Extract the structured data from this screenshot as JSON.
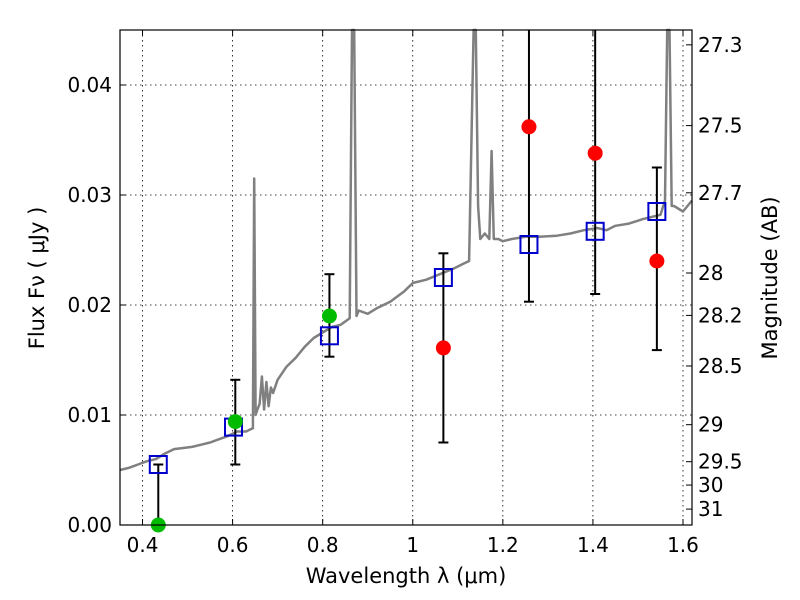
{
  "chart_data": {
    "type": "scatter",
    "title": "",
    "xlabel": "Wavelength  λ (μm)",
    "ylabel": "Flux  Fν  ( μJy )",
    "y2label": "Magnitude (AB)",
    "xlim": [
      0.35,
      1.62
    ],
    "ylim": [
      0.0,
      0.045
    ],
    "grid": true,
    "legend": "none",
    "x_ticks": [
      0.4,
      0.6,
      0.8,
      1.0,
      1.2,
      1.4,
      1.6
    ],
    "x_tick_labels": [
      "0.4",
      "0.6",
      "0.8",
      "1",
      "1.2",
      "1.4",
      "1.6"
    ],
    "y_ticks": [
      0.0,
      0.01,
      0.02,
      0.03,
      0.04
    ],
    "y_tick_labels": [
      "0.00",
      "0.01",
      "0.02",
      "0.03",
      "0.04"
    ],
    "mag_ticks": [
      27.3,
      27.5,
      27.7,
      28,
      28.2,
      28.5,
      29,
      29.5,
      30,
      31
    ],
    "mag_tick_labels": [
      "27.3",
      "27.5",
      "27.7",
      "28",
      "28.2",
      "28.5",
      "29",
      "29.5",
      "30",
      "31"
    ],
    "colors": {
      "model": "#808080",
      "model_photometry": "#0000cc",
      "detections": "#00bb00",
      "measurements": "#ff0000",
      "errorbars": "#000000"
    },
    "series": [
      {
        "kind": "line",
        "color": "#808080",
        "x": [
          0.35,
          0.37,
          0.39,
          0.41,
          0.43,
          0.45,
          0.47,
          0.49,
          0.51,
          0.53,
          0.55,
          0.57,
          0.59,
          0.61,
          0.63,
          0.64,
          0.645,
          0.648,
          0.651,
          0.655,
          0.66,
          0.665,
          0.67,
          0.675,
          0.68,
          0.685,
          0.69,
          0.7,
          0.72,
          0.74,
          0.76,
          0.78,
          0.8,
          0.82,
          0.84,
          0.86,
          0.865,
          0.87,
          0.875,
          0.88,
          0.9,
          0.92,
          0.95,
          0.98,
          1.0,
          1.03,
          1.06,
          1.09,
          1.11,
          1.125,
          1.135,
          1.14,
          1.145,
          1.15,
          1.16,
          1.17,
          1.175,
          1.18,
          1.19,
          1.2,
          1.22,
          1.25,
          1.28,
          1.32,
          1.35,
          1.38,
          1.41,
          1.43,
          1.45,
          1.48,
          1.51,
          1.53,
          1.55,
          1.56,
          1.565,
          1.57,
          1.575,
          1.58,
          1.6,
          1.62
        ],
        "y": [
          0.005,
          0.0052,
          0.0055,
          0.0058,
          0.006,
          0.0065,
          0.0069,
          0.007,
          0.0071,
          0.0073,
          0.0075,
          0.0078,
          0.0081,
          0.0085,
          0.0085,
          0.0087,
          0.0088,
          0.0315,
          0.01,
          0.0105,
          0.011,
          0.0135,
          0.0105,
          0.013,
          0.0108,
          0.0125,
          0.012,
          0.0132,
          0.0144,
          0.0152,
          0.0162,
          0.017,
          0.0175,
          0.018,
          0.0182,
          0.0188,
          0.045,
          0.045,
          0.019,
          0.0195,
          0.0192,
          0.0197,
          0.0203,
          0.0212,
          0.022,
          0.0223,
          0.0228,
          0.0233,
          0.0237,
          0.024,
          0.045,
          0.045,
          0.029,
          0.026,
          0.0265,
          0.026,
          0.034,
          0.026,
          0.026,
          0.0258,
          0.026,
          0.0262,
          0.0262,
          0.0263,
          0.0265,
          0.0268,
          0.027,
          0.0268,
          0.0272,
          0.0274,
          0.0278,
          0.028,
          0.0282,
          0.0295,
          0.045,
          0.045,
          0.029,
          0.029,
          0.0285,
          0.0295
        ]
      },
      {
        "kind": "markers",
        "marker": "open-square",
        "color": "#0000cc",
        "x": [
          0.435,
          0.602,
          0.815,
          1.068,
          1.258,
          1.405,
          1.542
        ],
        "y": [
          0.0055,
          0.0089,
          0.0172,
          0.0225,
          0.0255,
          0.0267,
          0.0285
        ]
      },
      {
        "kind": "markers",
        "marker": "circle",
        "color": "#00bb00",
        "x": [
          0.435,
          0.606,
          0.815
        ],
        "y": [
          0.0,
          0.0094,
          0.019
        ]
      },
      {
        "kind": "markers",
        "marker": "circle",
        "color": "#ff0000",
        "x": [
          1.068,
          1.258,
          1.405,
          1.542
        ],
        "y": [
          0.0161,
          0.0362,
          0.0338,
          0.024
        ]
      },
      {
        "kind": "errorbars",
        "color": "#000000",
        "x": [
          0.435,
          0.606,
          0.815,
          1.068,
          1.258,
          1.405,
          1.542
        ],
        "y_low": [
          0.0,
          0.0055,
          0.0153,
          0.0075,
          0.0203,
          0.021,
          0.0159
        ],
        "y_high": [
          0.0055,
          0.0132,
          0.0228,
          0.0247,
          0.045,
          0.045,
          0.0325
        ]
      }
    ]
  }
}
